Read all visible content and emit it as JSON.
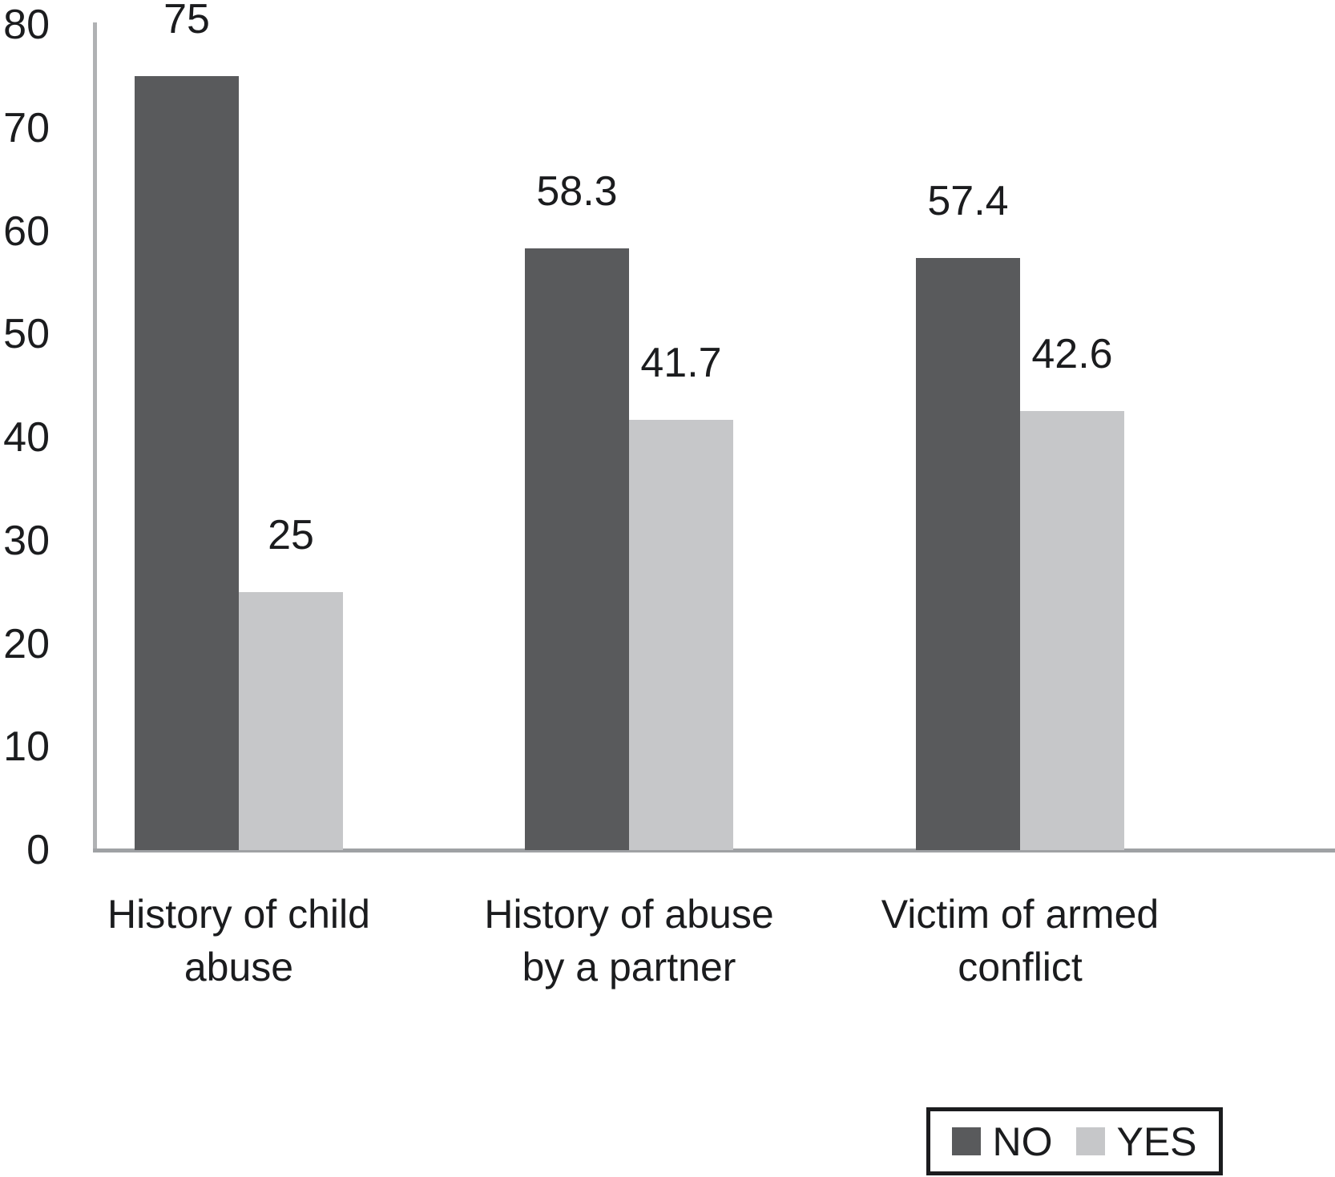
{
  "chart_data": {
    "type": "bar",
    "title": "",
    "xlabel": "",
    "ylabel": "",
    "categories": [
      "History of child\nabuse",
      "History of abuse\nby a partner",
      "Victim of armed\nconflict"
    ],
    "series": [
      {
        "name": "NO",
        "color": "#595a5c",
        "values": [
          75,
          58.3,
          57.4
        ]
      },
      {
        "name": "YES",
        "color": "#c6c7c9",
        "values": [
          25,
          41.7,
          42.6
        ]
      }
    ],
    "ylim": [
      0,
      80
    ],
    "yticks": [
      0,
      10,
      20,
      30,
      40,
      50,
      60,
      70,
      80
    ],
    "grid": false,
    "data_labels_shown": true,
    "legend_position": "bottom-right",
    "axis_color": "#a6a8aa",
    "text_color": "#1b1c1e",
    "background_color": "#ffffff"
  }
}
